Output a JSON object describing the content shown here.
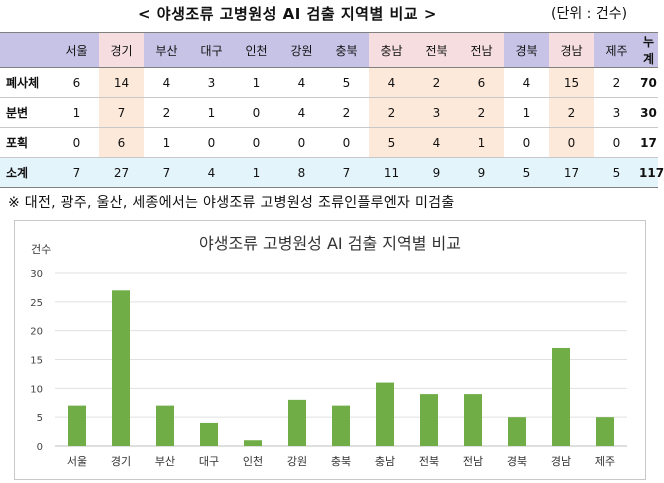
{
  "header": {
    "title": "< 야생조류 고병원성 AI 검출 지역별 비교 >",
    "unit": "(단위 : 건수)"
  },
  "table": {
    "columns": [
      "서울",
      "경기",
      "부산",
      "대구",
      "인천",
      "강원",
      "충북",
      "충남",
      "전북",
      "전남",
      "경북",
      "경남",
      "제주",
      "누계"
    ],
    "rows": [
      {
        "label": "폐사체",
        "values": [
          "6",
          "14",
          "4",
          "3",
          "1",
          "4",
          "5",
          "4",
          "2",
          "6",
          "4",
          "15",
          "2",
          "70"
        ]
      },
      {
        "label": "분변",
        "values": [
          "1",
          "7",
          "2",
          "1",
          "0",
          "4",
          "2",
          "2",
          "3",
          "2",
          "1",
          "2",
          "3",
          "30"
        ]
      },
      {
        "label": "포획",
        "values": [
          "0",
          "6",
          "1",
          "0",
          "0",
          "0",
          "0",
          "5",
          "4",
          "1",
          "0",
          "0",
          "0",
          "17"
        ]
      },
      {
        "label": "소계",
        "values": [
          "7",
          "27",
          "7",
          "4",
          "1",
          "8",
          "7",
          "11",
          "9",
          "9",
          "5",
          "17",
          "5",
          "117"
        ]
      }
    ],
    "highlight_columns": [
      1,
      7,
      8,
      9,
      11
    ],
    "colors": {
      "header_bg": "#c7c3e6",
      "highlight_bg": "#fde9d9",
      "subtotal_bg": "#e4f4fb"
    }
  },
  "note": "※ 대전, 광주, 울산, 세종에서는 야생조류 고병원성 조류인플루엔자 미검출",
  "chart_data": {
    "type": "bar",
    "title": "야생조류 고병원성 AI 검출 지역별 비교",
    "ylabel": "건수",
    "xlabel": "",
    "categories": [
      "서울",
      "경기",
      "부산",
      "대구",
      "인천",
      "강원",
      "충북",
      "충남",
      "전북",
      "전남",
      "경북",
      "경남",
      "제주"
    ],
    "values": [
      7,
      27,
      7,
      4,
      1,
      8,
      7,
      11,
      9,
      9,
      5,
      17,
      5
    ],
    "ylim": [
      0,
      30
    ],
    "yticks": [
      0,
      5,
      10,
      15,
      20,
      25,
      30
    ],
    "grid": true,
    "legend": "none",
    "bar_color": "#70ad47"
  }
}
